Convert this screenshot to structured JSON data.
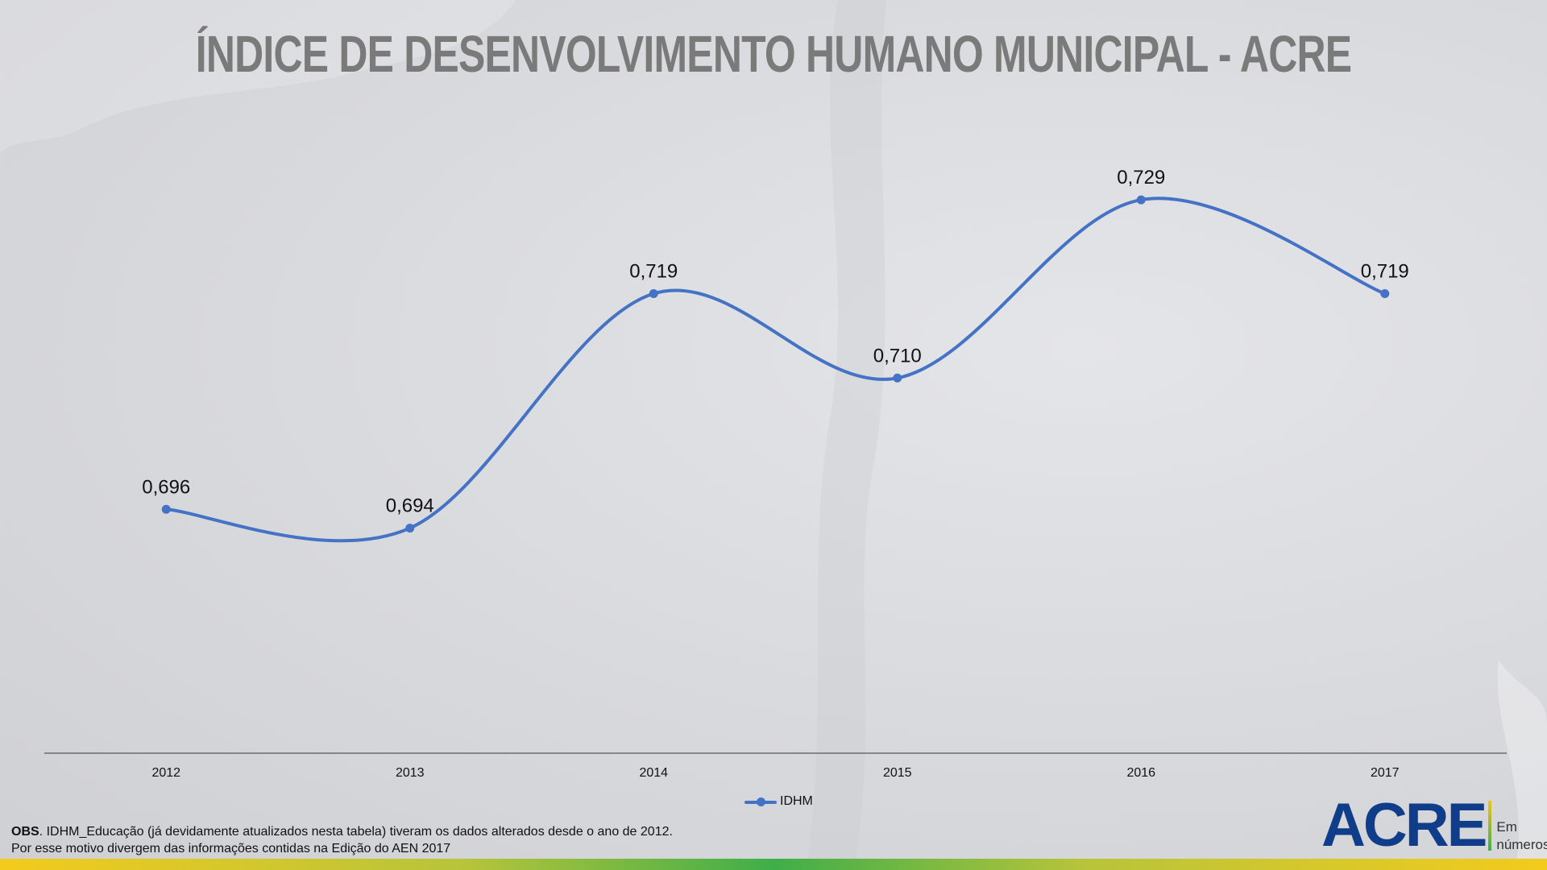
{
  "title": "ÍNDICE DE DESENVOLVIMENTO HUMANO MUNICIPAL - ACRE",
  "colors": {
    "series": "#4472c4",
    "title": "#7a7a7a",
    "logo": "#0f3d8a"
  },
  "chart_data": {
    "type": "line",
    "smooth": true,
    "categories": [
      "2012",
      "2013",
      "2014",
      "2015",
      "2016",
      "2017"
    ],
    "series": [
      {
        "name": "IDHM",
        "values": [
          0.696,
          0.694,
          0.719,
          0.71,
          0.729,
          0.719
        ],
        "labels": [
          "0,696",
          "0,694",
          "0,719",
          "0,710",
          "0,729",
          "0,719"
        ]
      }
    ],
    "ylim": [
      0.67,
      0.74
    ],
    "grid": false,
    "legend": "bottom-center"
  },
  "note": {
    "bold": "OBS",
    "line1": ". IDHM_Educação (já devidamente atualizados nesta tabela) tiveram os dados alterados desde o ano de 2012.",
    "line2": "Por esse motivo divergem das informações contidas na Edição do AEN 2017"
  },
  "logo": {
    "word": "ACRE",
    "sub1": "Em",
    "sub2": "números"
  }
}
